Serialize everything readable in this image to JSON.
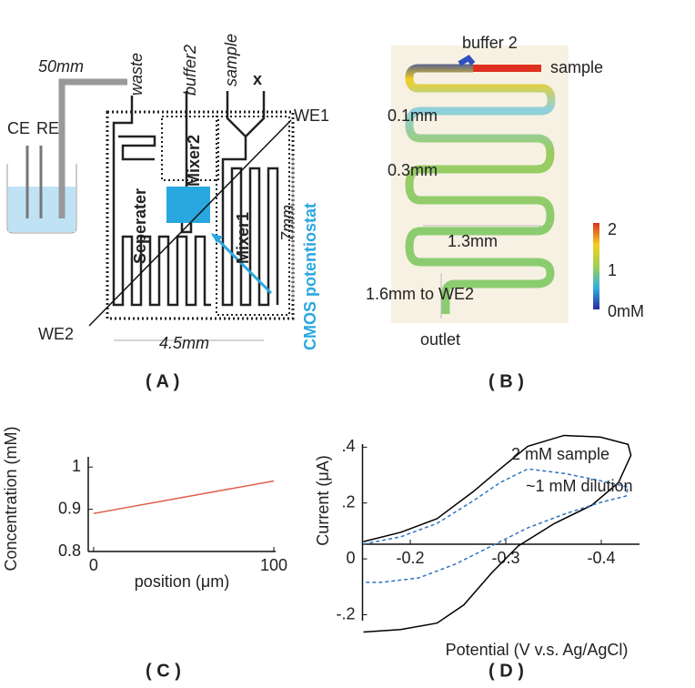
{
  "panel_a": {
    "caption": "( A )",
    "tube_length": "50mm",
    "waste": "waste",
    "buffer2": "buffer2",
    "sample": "sample",
    "x": "x",
    "we1": "WE1",
    "ce": "CE",
    "re": "RE",
    "separator": "Seperater",
    "mixer2": "Mixer2",
    "mixer1": "Mixer1",
    "height": "7mm",
    "potentiostat": "CMOS potentiostat",
    "we2": "WE2",
    "width": "4.5mm"
  },
  "panel_b": {
    "caption": "( B )",
    "buffer": "buffer 2",
    "sample": "sample",
    "d1": "0.1mm",
    "d2": "0.3mm",
    "d3": "1.3mm",
    "d4": "1.6mm to WE2",
    "outlet": "outlet",
    "colorbar": [
      "2",
      "1",
      "0mM"
    ]
  },
  "chart_data": [
    {
      "type": "line",
      "caption": "( C )",
      "xlabel": "position (μm)",
      "ylabel": "Concentration (mM)",
      "x": [
        0,
        100
      ],
      "series": [
        {
          "color": "#e0604c",
          "values": [
            0.89,
            0.967
          ]
        }
      ],
      "xlim": [
        -3,
        101
      ],
      "xticks": [
        0,
        100
      ],
      "ylim": [
        0.8,
        1.05
      ],
      "yticks": [
        0.8,
        0.9,
        1
      ]
    },
    {
      "type": "line",
      "caption": "( D )",
      "xlabel": "Potential (V v.s. Ag/AgCl)",
      "ylabel": "Current (μA)",
      "annotations": [
        "2 mM sample",
        "~1 mM dilution"
      ],
      "series": [
        {
          "color": "#000000",
          "dash": false,
          "x": [
            -0.151,
            -0.19,
            -0.228,
            -0.266,
            -0.294,
            -0.323,
            -0.361,
            -0.399,
            -0.428,
            -0.431,
            -0.418,
            -0.39,
            -0.351,
            -0.313,
            -0.285,
            -0.256,
            -0.228,
            -0.19,
            -0.151
          ],
          "values": [
            0.062,
            0.095,
            0.144,
            0.241,
            0.322,
            0.403,
            0.442,
            0.436,
            0.41,
            0.371,
            0.273,
            0.192,
            0.127,
            0.046,
            -0.051,
            -0.165,
            -0.23,
            -0.253,
            -0.262
          ]
        },
        {
          "color": "#2f74c0",
          "dash": true,
          "x": [
            -0.151,
            -0.19,
            -0.228,
            -0.266,
            -0.294,
            -0.323,
            -0.361,
            -0.399,
            -0.428,
            -0.426,
            -0.399,
            -0.361,
            -0.323,
            -0.285,
            -0.247,
            -0.209,
            -0.17,
            -0.151
          ],
          "values": [
            0.053,
            0.079,
            0.127,
            0.208,
            0.273,
            0.322,
            0.306,
            0.28,
            0.257,
            0.225,
            0.202,
            0.16,
            0.111,
            0.046,
            -0.019,
            -0.068,
            -0.084,
            -0.084
          ]
        }
      ],
      "xlim": [
        -0.15,
        -0.44
      ],
      "xticks": [
        -0.2,
        -0.3,
        -0.4
      ],
      "ylim": [
        -0.27,
        0.45
      ],
      "yticks": [
        {
          "value": 0.4,
          "label": ".4"
        },
        {
          "value": 0.2,
          "label": ".2"
        },
        0,
        {
          "value": -0.2,
          "label": "-.2"
        }
      ]
    }
  ]
}
